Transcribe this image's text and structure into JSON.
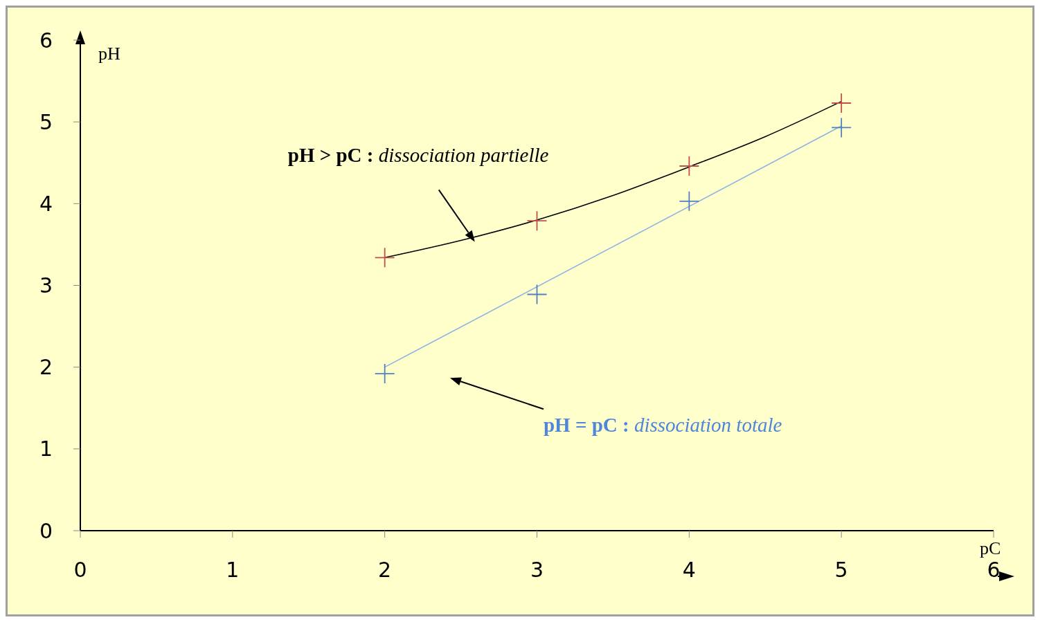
{
  "chart_data": {
    "type": "scatter",
    "xlabel": "pC",
    "ylabel": "pH",
    "xlim": [
      0,
      6
    ],
    "ylim": [
      0,
      6
    ],
    "xticks": [
      0,
      1,
      2,
      3,
      4,
      5,
      6
    ],
    "yticks": [
      0,
      1,
      2,
      3,
      4,
      5,
      6
    ],
    "grid": false,
    "series": [
      {
        "type": "line",
        "color": "#000000",
        "x": [
          2,
          2.5,
          3,
          3.5,
          4,
          4.5,
          5
        ],
        "values": [
          3.34,
          3.55,
          3.8,
          4.1,
          4.45,
          4.82,
          5.25
        ]
      },
      {
        "type": "line",
        "color": "#8db3e2",
        "x": [
          2,
          5
        ],
        "values": [
          2,
          4.95
        ]
      },
      {
        "color": "#c0504d",
        "marker": "cross",
        "x": [
          2,
          3,
          4,
          5
        ],
        "values": [
          3.34,
          3.79,
          4.46,
          5.23
        ]
      },
      {
        "color": "#4f81bd",
        "marker": "cross",
        "x": [
          2,
          3,
          4,
          5
        ],
        "values": [
          1.92,
          2.89,
          4.03,
          4.93
        ]
      }
    ],
    "annotations": [
      "pH > pC : dissociation partielle",
      "pH = pC : dissociation totale"
    ]
  }
}
